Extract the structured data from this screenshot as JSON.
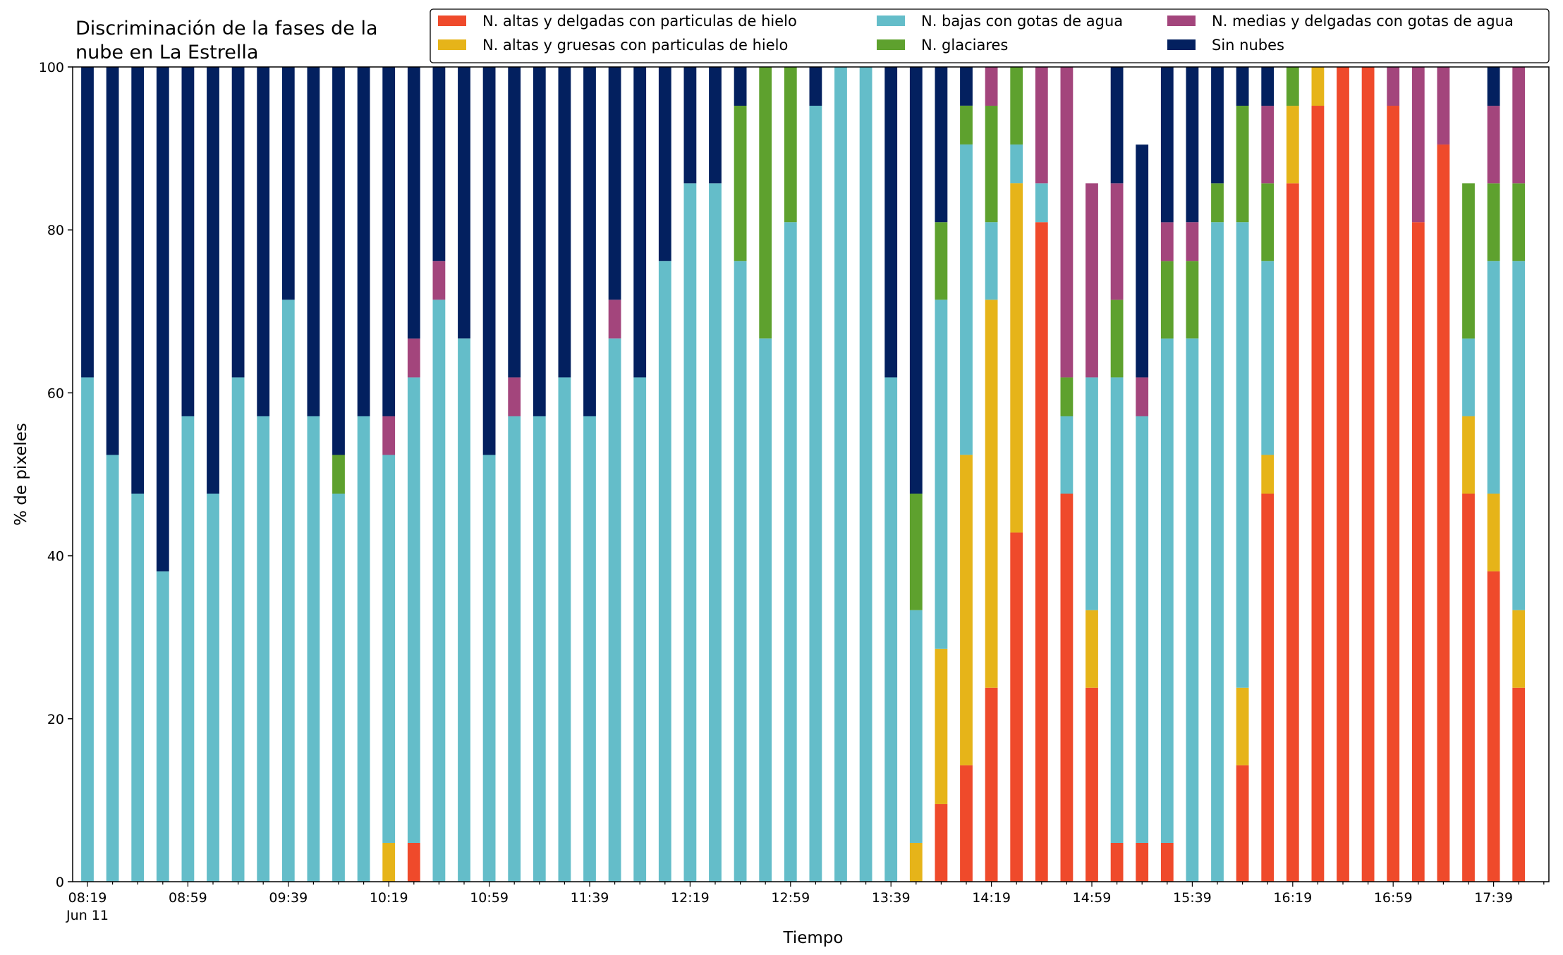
{
  "chart_data": {
    "type": "bar",
    "stacked": true,
    "title": "Discriminación de la fases de la nube en La Estrella",
    "title_lines": [
      "Discriminación de la fases de la",
      "nube en La Estrella"
    ],
    "xlabel": "Tiempo",
    "ylabel": "% de pixeles",
    "ylim": [
      0,
      100
    ],
    "yticks": [
      0,
      20,
      40,
      60,
      80,
      100
    ],
    "grid": false,
    "legend_position": "top-right",
    "x_start": "08:19",
    "x_interval_minutes": 10,
    "x_tick_labels": [
      "08:19",
      "08:59",
      "09:39",
      "10:19",
      "10:59",
      "11:39",
      "12:19",
      "12:59",
      "13:39",
      "14:19",
      "14:59",
      "15:39",
      "16:19",
      "16:59",
      "17:39"
    ],
    "x_tick_sublabel": "Jun 11",
    "series": [
      {
        "name": "N. altas y delgadas con particulas de hielo",
        "color": "#ef4a2b",
        "values": [
          0,
          0,
          0,
          0,
          0,
          0,
          0,
          0,
          0,
          0,
          0,
          0,
          0,
          4.76,
          0,
          0,
          0,
          0,
          0,
          0,
          0,
          0,
          0,
          0,
          0,
          0,
          0,
          0,
          0,
          0,
          0,
          0,
          0,
          0,
          9.52,
          14.29,
          23.81,
          42.86,
          80.95,
          47.62,
          23.81,
          4.76,
          4.76,
          4.76,
          0,
          0,
          14.29,
          47.62,
          85.71,
          95.24,
          100,
          100,
          95.24,
          80.95,
          90.48,
          47.62,
          38.1,
          23.81
        ]
      },
      {
        "name": "N. altas y gruesas con particulas de hielo",
        "color": "#e6b419",
        "values": [
          0,
          0,
          0,
          0,
          0,
          0,
          0,
          0,
          0,
          0,
          0,
          0,
          4.76,
          0,
          0,
          0,
          0,
          0,
          0,
          0,
          0,
          0,
          0,
          0,
          0,
          0,
          0,
          0,
          0,
          0,
          0,
          0,
          0,
          4.76,
          19.05,
          38.1,
          47.62,
          42.86,
          0,
          0,
          9.52,
          0,
          0,
          0,
          0,
          0,
          9.52,
          4.76,
          9.52,
          4.76,
          0,
          0,
          0,
          0,
          0,
          9.52,
          9.52,
          9.52
        ]
      },
      {
        "name": "N. bajas con gotas de agua",
        "color": "#64bdc9",
        "values": [
          61.9,
          52.38,
          47.62,
          38.1,
          57.14,
          47.62,
          61.9,
          57.14,
          71.43,
          57.14,
          47.62,
          57.14,
          47.62,
          57.14,
          71.43,
          66.67,
          52.38,
          57.14,
          57.14,
          61.9,
          57.14,
          66.67,
          61.9,
          76.19,
          85.71,
          85.71,
          76.19,
          66.67,
          80.95,
          95.24,
          100,
          100,
          61.9,
          28.57,
          42.86,
          38.1,
          9.52,
          4.76,
          4.76,
          9.52,
          28.57,
          57.14,
          52.38,
          61.9,
          66.67,
          80.95,
          57.14,
          23.81,
          0,
          0,
          0,
          0,
          0,
          0,
          0,
          9.52,
          28.57,
          42.86
        ]
      },
      {
        "name": "N. glaciares",
        "color": "#5ea12e",
        "values": [
          0,
          0,
          0,
          0,
          0,
          0,
          0,
          0,
          0,
          0,
          4.76,
          0,
          0,
          0,
          0,
          0,
          0,
          0,
          0,
          0,
          0,
          0,
          0,
          0,
          0,
          0,
          19.05,
          33.33,
          19.05,
          0,
          0,
          0,
          0,
          14.29,
          9.52,
          4.76,
          14.29,
          9.52,
          0,
          4.76,
          0,
          9.52,
          0,
          9.52,
          9.52,
          4.76,
          14.29,
          9.52,
          4.76,
          0,
          0,
          0,
          0,
          0,
          0,
          19.05,
          9.52,
          9.52
        ]
      },
      {
        "name": "N. medias y delgadas con gotas de agua",
        "color": "#a3457c",
        "values": [
          0,
          0,
          0,
          0,
          0,
          0,
          0,
          0,
          0,
          0,
          0,
          0,
          4.76,
          4.76,
          4.76,
          0,
          0,
          4.76,
          0,
          0,
          0,
          4.76,
          0,
          0,
          0,
          0,
          0,
          0,
          0,
          0,
          0,
          0,
          0,
          0,
          0,
          0,
          4.76,
          0,
          14.29,
          38.1,
          23.81,
          14.29,
          4.76,
          4.76,
          4.76,
          0,
          0,
          9.52,
          0,
          0,
          0,
          0,
          4.76,
          19.05,
          9.52,
          0,
          9.52,
          14.29
        ]
      },
      {
        "name": "Sin nubes",
        "color": "#03205f",
        "values": [
          38.1,
          47.62,
          52.38,
          61.9,
          42.86,
          52.38,
          38.1,
          42.86,
          28.57,
          42.86,
          47.62,
          42.86,
          42.86,
          33.33,
          23.81,
          33.33,
          47.62,
          38.1,
          42.86,
          38.1,
          42.86,
          28.57,
          38.1,
          23.81,
          14.29,
          14.29,
          4.76,
          0,
          0,
          4.76,
          0,
          0,
          38.1,
          52.38,
          19.05,
          4.76,
          0,
          0,
          0,
          0,
          0,
          14.29,
          28.57,
          19.05,
          23.81,
          19.05,
          4.76,
          4.76,
          0,
          0,
          0,
          0,
          0,
          0,
          0,
          0,
          4.76,
          0
        ]
      }
    ]
  }
}
